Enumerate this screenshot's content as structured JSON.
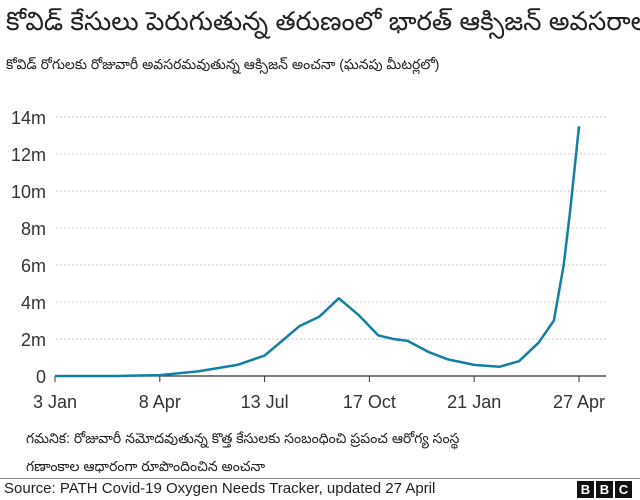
{
  "title": "కోవిడ్ కేసులు పెరుగుతున్న తరుణంలో భారత్ ఆక్సిజన్ అవసరాలు",
  "subtitle": "కోవిడ్ రోగులకు రోజువారీ అవసరమవుతున్న ఆక్సిజన్ అంచనా (ఘనపు మీటర్లలో)",
  "note_line1": "గమనిక: రోజువారీ నమోదవుతున్న కొత్త కేసులకు సంబంధించి ప్రపంచ ఆరోగ్య సంస్థ",
  "note_line2": "గణాంకాల ఆధారంగా రూపొందించిన అంచనా",
  "source": "Source: PATH Covid-19 Oxygen Needs Tracker, updated 27 April",
  "logo": [
    "B",
    "B",
    "C"
  ],
  "chart_data": {
    "type": "line",
    "title": "కోవిడ్ కేసులు పెరుగుతున్న తరుణంలో భారత్ ఆక్సిజన్ అవసరాలు",
    "ylim": [
      0,
      14
    ],
    "y_ticks": [
      {
        "v": 0,
        "label": "0"
      },
      {
        "v": 2,
        "label": "2m"
      },
      {
        "v": 4,
        "label": "4m"
      },
      {
        "v": 6,
        "label": "6m"
      },
      {
        "v": 8,
        "label": "8m"
      },
      {
        "v": 10,
        "label": "10m"
      },
      {
        "v": 12,
        "label": "12m"
      },
      {
        "v": 14,
        "label": "14m"
      }
    ],
    "x_ticks": [
      {
        "date": "2020-01-03",
        "label": "3 Jan"
      },
      {
        "date": "2020-04-08",
        "label": "8 Apr"
      },
      {
        "date": "2020-07-13",
        "label": "13 Jul"
      },
      {
        "date": "2020-10-17",
        "label": "17 Oct"
      },
      {
        "date": "2021-01-21",
        "label": "21 Jan"
      },
      {
        "date": "2021-04-27",
        "label": "27 Apr"
      }
    ],
    "grid": true,
    "line_color": "#1380A1",
    "points": [
      [
        "2020-01-03",
        0
      ],
      [
        "2020-03-01",
        0
      ],
      [
        "2020-04-08",
        0.05
      ],
      [
        "2020-05-13",
        0.25
      ],
      [
        "2020-06-18",
        0.6
      ],
      [
        "2020-07-13",
        1.1
      ],
      [
        "2020-07-31",
        2.0
      ],
      [
        "2020-08-14",
        2.7
      ],
      [
        "2020-09-01",
        3.2
      ],
      [
        "2020-09-19",
        4.2
      ],
      [
        "2020-10-07",
        3.3
      ],
      [
        "2020-10-25",
        2.2
      ],
      [
        "2020-11-08",
        2.0
      ],
      [
        "2020-11-21",
        1.9
      ],
      [
        "2020-12-10",
        1.3
      ],
      [
        "2020-12-28",
        0.9
      ],
      [
        "2021-01-21",
        0.6
      ],
      [
        "2021-02-13",
        0.5
      ],
      [
        "2021-03-03",
        0.8
      ],
      [
        "2021-03-21",
        1.8
      ],
      [
        "2021-04-04",
        3.0
      ],
      [
        "2021-04-13",
        6.0
      ],
      [
        "2021-04-19",
        9.0
      ],
      [
        "2021-04-27",
        13.5
      ]
    ]
  }
}
